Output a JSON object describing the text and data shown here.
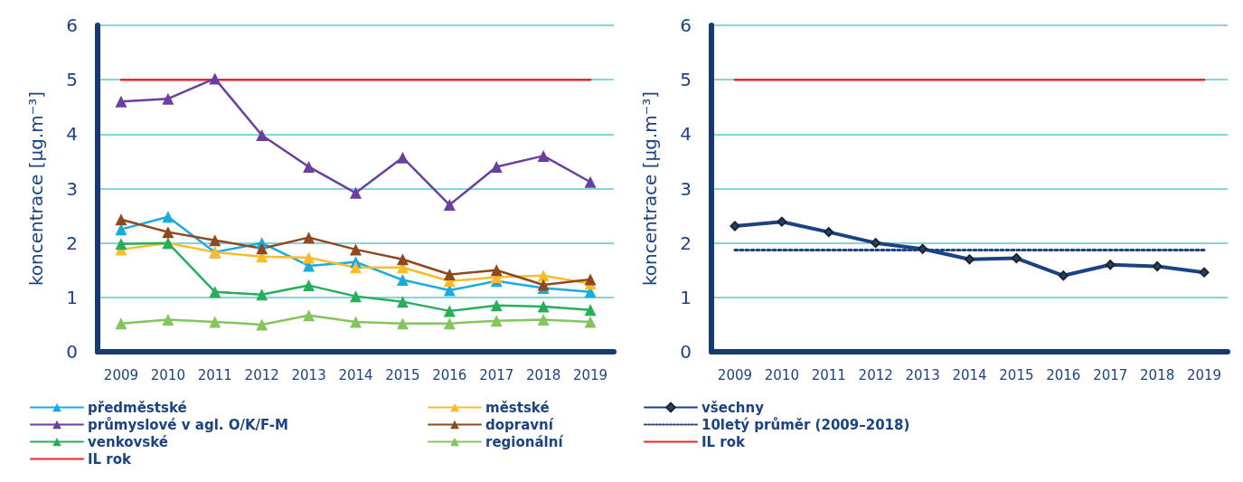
{
  "chart_data": [
    {
      "type": "line",
      "ylabel": "koncentrace [µg.m⁻³]",
      "categories": [
        "2009",
        "2010",
        "2011",
        "2012",
        "2013",
        "2014",
        "2015",
        "2016",
        "2017",
        "2018",
        "2019"
      ],
      "ylim": [
        0,
        6
      ],
      "yticks": [
        0,
        1,
        2,
        3,
        4,
        5,
        6
      ],
      "grid": "y",
      "legend": "bottom",
      "marker": "triangle",
      "line_style": "solid",
      "series": [
        {
          "name": "předměstské",
          "color": "#1aaae2",
          "values": [
            2.25,
            2.48,
            1.83,
            2.0,
            1.58,
            1.65,
            1.32,
            1.13,
            1.3,
            1.17,
            1.1
          ]
        },
        {
          "name": "městské",
          "color": "#fbbc2a",
          "values": [
            1.88,
            2.0,
            1.83,
            1.75,
            1.73,
            1.55,
            1.55,
            1.3,
            1.37,
            1.4,
            1.25
          ]
        },
        {
          "name": "průmyslové v agl. O/K/F-M",
          "color": "#6a3fa0",
          "values": [
            4.6,
            4.65,
            5.02,
            3.98,
            3.4,
            2.92,
            3.57,
            2.7,
            3.4,
            3.6,
            3.12
          ]
        },
        {
          "name": "dopravní",
          "color": "#8e4a1e",
          "values": [
            2.43,
            2.2,
            2.05,
            1.9,
            2.1,
            1.88,
            1.7,
            1.42,
            1.5,
            1.23,
            1.33
          ]
        },
        {
          "name": "venkovské",
          "color": "#27ae5a",
          "values": [
            1.98,
            2.0,
            1.1,
            1.05,
            1.22,
            1.02,
            0.92,
            0.75,
            0.85,
            0.83,
            0.77
          ]
        },
        {
          "name": "regionální",
          "color": "#86c55e",
          "values": [
            0.52,
            0.59,
            0.55,
            0.5,
            0.67,
            0.55,
            0.52,
            0.52,
            0.57,
            0.59,
            0.55
          ]
        },
        {
          "name": "IL rok",
          "color": "#e8262d",
          "marker": "none",
          "values": [
            5,
            5,
            5,
            5,
            5,
            5,
            5,
            5,
            5,
            5,
            5
          ]
        }
      ]
    },
    {
      "type": "line",
      "ylabel": "koncentrace [µg.m⁻³]",
      "categories": [
        "2009",
        "2010",
        "2011",
        "2012",
        "2013",
        "2014",
        "2015",
        "2016",
        "2017",
        "2018",
        "2019"
      ],
      "ylim": [
        0,
        6
      ],
      "yticks": [
        0,
        1,
        2,
        3,
        4,
        5,
        6
      ],
      "grid": "y",
      "legend": "bottom",
      "marker": "diamond",
      "line_style": "solid",
      "series": [
        {
          "name": "všechny",
          "color": "#1b4383",
          "values": [
            2.31,
            2.39,
            2.2,
            2.0,
            1.89,
            1.7,
            1.72,
            1.4,
            1.6,
            1.57,
            1.46
          ]
        },
        {
          "name": "10letý průměr (2009–2018)",
          "color": "#1b4383",
          "marker": "none",
          "line_style": "dotted",
          "values": [
            1.87,
            1.87,
            1.87,
            1.87,
            1.87,
            1.87,
            1.87,
            1.87,
            1.87,
            1.87,
            1.87
          ]
        },
        {
          "name": "IL rok",
          "color": "#e8262d",
          "marker": "none",
          "values": [
            5,
            5,
            5,
            5,
            5,
            5,
            5,
            5,
            5,
            5,
            5
          ]
        }
      ]
    }
  ]
}
